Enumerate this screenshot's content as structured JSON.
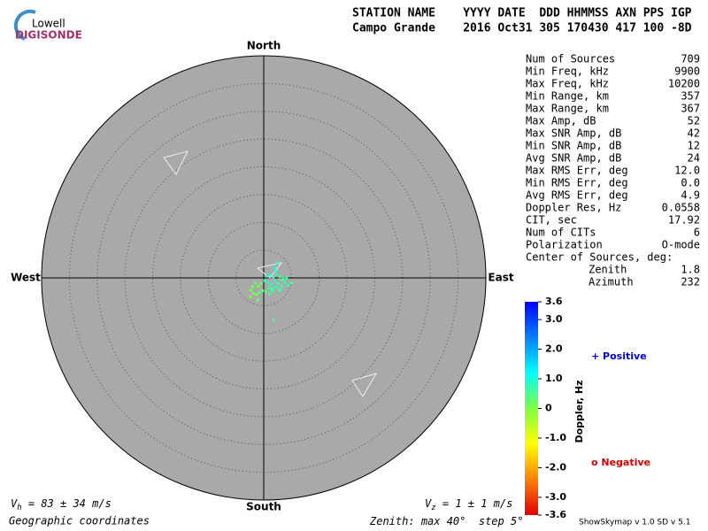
{
  "logo": {
    "top": "Lowell",
    "bottom": "DIGISONDE"
  },
  "header": {
    "line1": "STATION NAME    YYYY DATE  DDD HHMMSS AXN PPS IGP",
    "line2": "Campo Grande    2016 Oct31 305 170430 417 100 -8D"
  },
  "skymap": {
    "directions": {
      "north": "North",
      "south": "South",
      "west": "West",
      "east": "East"
    },
    "zenith_scale": {
      "prefix": "Zenith:",
      "max": {
        "value": 40,
        "label": "max 40°"
      },
      "step": {
        "value": 5,
        "label": "step 5°"
      }
    },
    "sources": {
      "east": [
        0.2,
        0.8,
        1.4,
        2.0,
        2.6,
        3.2,
        3.8,
        4.4,
        5.0,
        0.5,
        1.1,
        1.7,
        2.3,
        2.9,
        3.5,
        4.1,
        0.9,
        1.5,
        2.1,
        2.7,
        3.3,
        -0.5,
        -1.0,
        -1.5,
        -2.0,
        -2.3,
        -0.8,
        -1.3,
        -1.8,
        -0.2,
        0.4,
        1.0,
        1.6,
        2.2,
        2.4,
        1.9,
        -2.4,
        -1.1,
        1.75,
        3.0
      ],
      "north": [
        -0.5,
        -0.9,
        -1.2,
        -0.6,
        -1.0,
        -0.4,
        -0.8,
        -1.3,
        -0.9,
        0.3,
        0.5,
        0.1,
        0.6,
        0.2,
        -0.1,
        0.0,
        -1.8,
        -2.0,
        -1.6,
        -1.9,
        -1.5,
        -1.0,
        -1.5,
        -0.9,
        -1.6,
        -2.2,
        -2.6,
        -3.0,
        -2.8,
        -2.3,
        -2.5,
        -2.9,
        -2.4,
        1.2,
        2.7,
        1.8,
        -3.4,
        -4.0,
        -7.6,
        -2.2
      ],
      "doppler": [
        0.6,
        0.8,
        0.7,
        0.9,
        0.6,
        0.5,
        0.8,
        0.7,
        0.4,
        0.9,
        1.0,
        0.7,
        0.8,
        0.6,
        0.5,
        0.7,
        0.6,
        0.5,
        0.8,
        0.7,
        0.6,
        0.2,
        0.1,
        0.3,
        0.2,
        0.1,
        0.3,
        0.2,
        0.1,
        0.4,
        0.5,
        0.6,
        0.7,
        0.9,
        0.8,
        1.0,
        0.0,
        0.2,
        0.5,
        0.6
      ]
    }
  },
  "stats": [
    [
      "Num of Sources",
      "709"
    ],
    [
      "Min Freq, kHz",
      "9900"
    ],
    [
      "Max Freq, kHz",
      "10200"
    ],
    [
      "Min Range, km",
      "357"
    ],
    [
      "Max Range, km",
      "367"
    ],
    [
      "Max Amp, dB",
      "52"
    ],
    [
      "Max SNR Amp, dB",
      "42"
    ],
    [
      "Min SNR Amp, dB",
      "12"
    ],
    [
      "Avg SNR Amp, dB",
      "24"
    ],
    [
      "Max RMS Err, deg",
      "12.0"
    ],
    [
      "Min RMS Err, deg",
      "0.0"
    ],
    [
      "Avg RMS Err, deg",
      "4.9"
    ],
    [
      "Doppler Res, Hz",
      "0.0558"
    ],
    [
      "CIT, sec",
      "17.92"
    ],
    [
      "Num of CITs",
      "6"
    ],
    [
      "Polarization",
      "O-mode"
    ]
  ],
  "center": {
    "title": "Center of Sources, deg:",
    "rows": [
      [
        "Zenith",
        "1.8"
      ],
      [
        "Azimuth",
        "232"
      ]
    ]
  },
  "colorbar": {
    "label": "Doppler, Hz",
    "lim": [
      -3.6,
      3.6
    ],
    "colors": [
      "#e00000",
      "#ff8000",
      "#ffff00",
      "#80ff40",
      "#00ffff",
      "#0080ff",
      "#0000ff"
    ],
    "ticks": [
      3.6,
      {
        "value": 3.0,
        "label": "3.0"
      },
      {
        "value": 2.0,
        "label": "2.0"
      },
      {
        "value": 1.0,
        "label": "1.0"
      },
      0,
      {
        "value": -1.0,
        "label": "-1.0"
      },
      {
        "value": -2.0,
        "label": "-2.0"
      },
      {
        "value": -3.0,
        "label": "-3.0"
      },
      -3.6
    ],
    "positive": "+ Positive",
    "negative": "o Negative"
  },
  "footer": {
    "vh": [
      "V",
      "h",
      " = 83 ± 34 m/s"
    ],
    "vz": [
      "V",
      "z",
      " = 1 ± 1 m/s"
    ],
    "coords": "Geographic coordinates",
    "version": "ShowSkymap v 1.0   SD v 5.1"
  }
}
